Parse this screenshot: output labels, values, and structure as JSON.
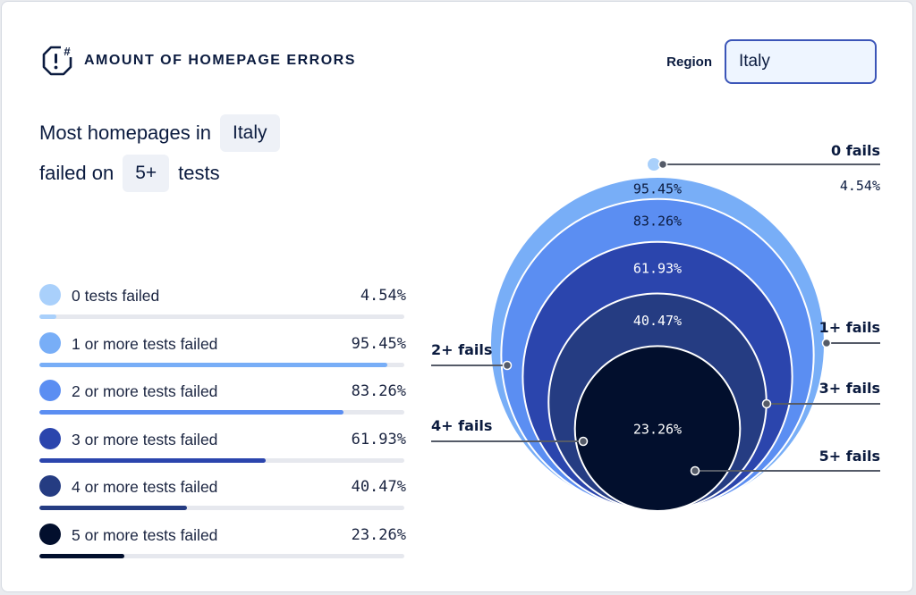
{
  "header": {
    "title": "AMOUNT OF HOMEPAGE ERRORS",
    "icon": "alert-hash-icon"
  },
  "region": {
    "label": "Region",
    "value": "Italy"
  },
  "summary": {
    "prefix": "Most homepages in",
    "country": "Italy",
    "middle": "failed on",
    "tests": "5+",
    "suffix": "tests"
  },
  "chart_data": {
    "type": "nested-circles",
    "series": [
      {
        "label": "0 tests failed",
        "chart_label": "0 fails",
        "value": 4.54,
        "display": "4.54%",
        "color": "#a9d0fb"
      },
      {
        "label": "1 or more tests failed",
        "chart_label": "1+ fails",
        "value": 95.45,
        "display": "95.45%",
        "color": "#78aef7"
      },
      {
        "label": "2 or more tests failed",
        "chart_label": "2+ fails",
        "value": 83.26,
        "display": "83.26%",
        "color": "#5b8ef2"
      },
      {
        "label": "3 or more tests failed",
        "chart_label": "3+ fails",
        "value": 61.93,
        "display": "61.93%",
        "color": "#2b45ad"
      },
      {
        "label": "4 or more tests failed",
        "chart_label": "4+ fails",
        "value": 40.47,
        "display": "40.47%",
        "color": "#253c82"
      },
      {
        "label": "5 or more tests failed",
        "chart_label": "5+ fails",
        "value": 23.26,
        "display": "23.26%",
        "color": "#020f2d"
      }
    ]
  }
}
